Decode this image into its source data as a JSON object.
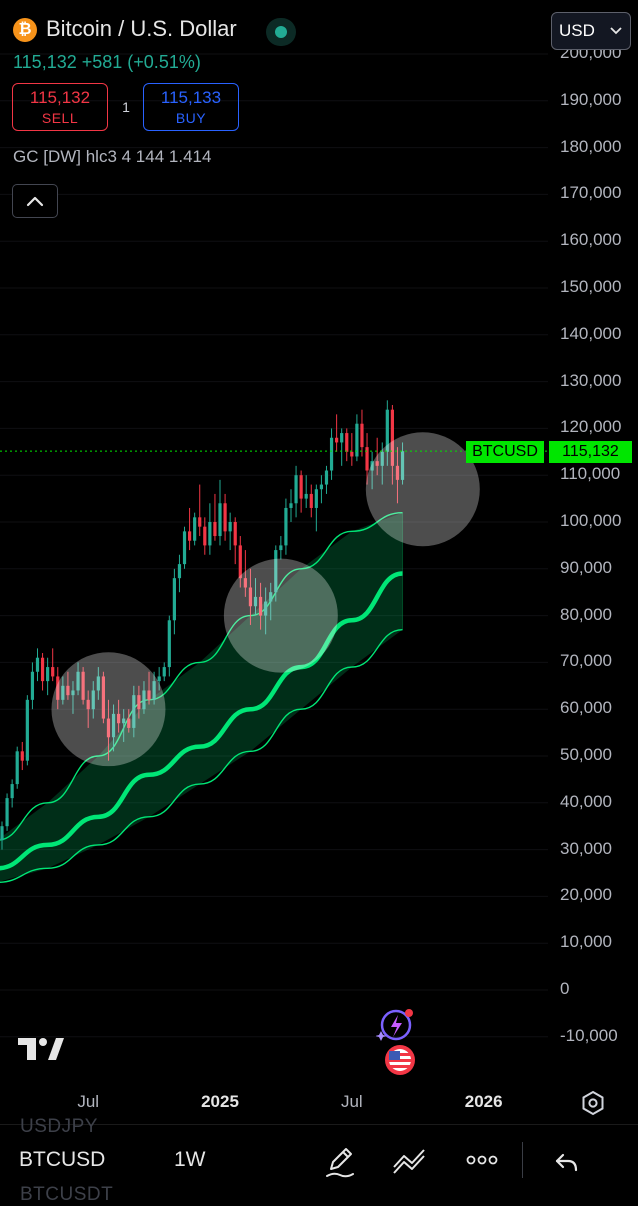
{
  "header": {
    "title": "Bitcoin / U.S. Dollar",
    "price": "115,132",
    "change": "+581 (+0.51%)",
    "sell_price": "115,132",
    "sell_label": "SELL",
    "spread": "1",
    "buy_price": "115,133",
    "buy_label": "BUY",
    "indicator": "GC [DW] hlc3 4 144 1.414",
    "currency": "USD"
  },
  "price_badge": {
    "symbol": "BTCUSD",
    "price": "115,132"
  },
  "colors": {
    "up": "#22ab94",
    "down": "#f23645",
    "band": "#00e676",
    "badge": "#00e600",
    "buy": "#2962ff"
  },
  "icons": [
    "bitcoin-logo",
    "live-dot",
    "chevron-down-icon",
    "chevron-up-icon",
    "tradingview-logo",
    "settings-icon",
    "ai-assistant-icon",
    "us-flag-icon",
    "pencil-icon",
    "trend-line-icon",
    "more-icon",
    "undo-icon"
  ],
  "bottom_bar": {
    "ghost_above": "USDJPY",
    "symbol": "BTCUSD",
    "interval": "1W",
    "ghost_below": "BTCUSDT"
  },
  "chart_data": {
    "type": "candlestick",
    "symbol": "BTCUSD",
    "interval": "1W",
    "y_ticks": [
      "200,000",
      "190,000",
      "180,000",
      "170,000",
      "160,000",
      "150,000",
      "140,000",
      "130,000",
      "120,000",
      "110,000",
      "100,000",
      "90,000",
      "80,000",
      "70,000",
      "60,000",
      "50,000",
      "40,000",
      "30,000",
      "20,000",
      "10,000",
      "0",
      "-10,000"
    ],
    "x_ticks": [
      {
        "label": "Jul",
        "bold": false
      },
      {
        "label": "2025",
        "bold": true
      },
      {
        "label": "Jul",
        "bold": false
      },
      {
        "label": "2026",
        "bold": true
      }
    ],
    "x_tick_weeks": [
      17,
      43,
      69,
      95
    ],
    "ylim": [
      -10000,
      200000
    ],
    "last_price": 115132,
    "candles": [
      [
        32000,
        36000,
        30000,
        35000
      ],
      [
        35000,
        42000,
        34000,
        41000
      ],
      [
        41000,
        45000,
        39000,
        44000
      ],
      [
        44000,
        52000,
        43000,
        51000
      ],
      [
        51000,
        53000,
        47000,
        49000
      ],
      [
        49000,
        63000,
        48000,
        62000
      ],
      [
        62000,
        70000,
        60000,
        68000
      ],
      [
        68000,
        73000,
        66000,
        71000
      ],
      [
        71000,
        72000,
        64000,
        66000
      ],
      [
        66000,
        71000,
        63000,
        69000
      ],
      [
        69000,
        73000,
        66000,
        67000
      ],
      [
        67000,
        69000,
        60000,
        62000
      ],
      [
        62000,
        67000,
        61000,
        65000
      ],
      [
        65000,
        68000,
        62000,
        63000
      ],
      [
        63000,
        66000,
        59000,
        64000
      ],
      [
        64000,
        70000,
        63000,
        68000
      ],
      [
        68000,
        69000,
        61000,
        62000
      ],
      [
        62000,
        64000,
        56000,
        60000
      ],
      [
        60000,
        66000,
        58000,
        64000
      ],
      [
        64000,
        69000,
        62000,
        67000
      ],
      [
        67000,
        68000,
        57000,
        58000
      ],
      [
        58000,
        62000,
        49000,
        54000
      ],
      [
        54000,
        61000,
        51000,
        59000
      ],
      [
        59000,
        62000,
        55000,
        57000
      ],
      [
        57000,
        60000,
        53000,
        58000
      ],
      [
        58000,
        60000,
        55000,
        56000
      ],
      [
        56000,
        65000,
        54000,
        63000
      ],
      [
        63000,
        65000,
        58000,
        60000
      ],
      [
        60000,
        66000,
        59000,
        64000
      ],
      [
        64000,
        68000,
        61000,
        62000
      ],
      [
        62000,
        68000,
        61000,
        66000
      ],
      [
        66000,
        69000,
        64000,
        67000
      ],
      [
        67000,
        70000,
        66000,
        69000
      ],
      [
        69000,
        80000,
        67000,
        79000
      ],
      [
        79000,
        90000,
        76000,
        88000
      ],
      [
        88000,
        93000,
        85000,
        91000
      ],
      [
        91000,
        99000,
        90000,
        98000
      ],
      [
        98000,
        103000,
        94000,
        96000
      ],
      [
        96000,
        102000,
        95000,
        101000
      ],
      [
        101000,
        108000,
        97000,
        99000
      ],
      [
        99000,
        101000,
        93000,
        95000
      ],
      [
        95000,
        104000,
        93000,
        100000
      ],
      [
        100000,
        106000,
        96000,
        97000
      ],
      [
        97000,
        109000,
        95000,
        104000
      ],
      [
        104000,
        106000,
        96000,
        98000
      ],
      [
        98000,
        102000,
        94000,
        100000
      ],
      [
        100000,
        101000,
        91000,
        95000
      ],
      [
        95000,
        97000,
        86000,
        88000
      ],
      [
        88000,
        94000,
        84000,
        86000
      ],
      [
        86000,
        90000,
        78000,
        82000
      ],
      [
        82000,
        88000,
        80000,
        84000
      ],
      [
        84000,
        87000,
        77000,
        80000
      ],
      [
        80000,
        86000,
        76000,
        83000
      ],
      [
        83000,
        87000,
        79000,
        85000
      ],
      [
        85000,
        95000,
        83000,
        94000
      ],
      [
        94000,
        97000,
        92000,
        95000
      ],
      [
        95000,
        105000,
        93000,
        103000
      ],
      [
        103000,
        107000,
        100000,
        104000
      ],
      [
        104000,
        112000,
        101000,
        110000
      ],
      [
        110000,
        111000,
        102000,
        105000
      ],
      [
        105000,
        110000,
        103000,
        106000
      ],
      [
        106000,
        108000,
        101000,
        103000
      ],
      [
        103000,
        108000,
        98000,
        107000
      ],
      [
        107000,
        110000,
        104000,
        108000
      ],
      [
        108000,
        112000,
        106000,
        111000
      ],
      [
        111000,
        120000,
        109000,
        118000
      ],
      [
        118000,
        123000,
        115000,
        117000
      ],
      [
        117000,
        120000,
        112000,
        119000
      ],
      [
        119000,
        120000,
        113000,
        115000
      ],
      [
        115000,
        119000,
        112000,
        114000
      ],
      [
        114000,
        123000,
        113000,
        121000
      ],
      [
        121000,
        124000,
        114000,
        116000
      ],
      [
        116000,
        119000,
        108000,
        111000
      ],
      [
        111000,
        115000,
        107000,
        113000
      ],
      [
        113000,
        118000,
        110000,
        112000
      ],
      [
        112000,
        117000,
        108000,
        115000
      ],
      [
        115000,
        126000,
        112000,
        124000
      ],
      [
        124000,
        125000,
        108000,
        112000
      ],
      [
        112000,
        116000,
        104000,
        109000
      ],
      [
        109000,
        117000,
        108000,
        115132
      ]
    ],
    "band_mid": [
      [
        -1,
        26000
      ],
      [
        9,
        31000
      ],
      [
        19,
        37000
      ],
      [
        29,
        46000
      ],
      [
        39,
        52000
      ],
      [
        49,
        60000
      ],
      [
        59,
        69000
      ],
      [
        69,
        79000
      ],
      [
        79,
        89000
      ]
    ],
    "band_upper": [
      [
        -1,
        32000
      ],
      [
        9,
        40000
      ],
      [
        19,
        50000
      ],
      [
        29,
        62000
      ],
      [
        39,
        70000
      ],
      [
        49,
        80000
      ],
      [
        59,
        90000
      ],
      [
        69,
        98000
      ],
      [
        79,
        102000
      ]
    ],
    "band_lower": [
      [
        -1,
        23000
      ],
      [
        9,
        26000
      ],
      [
        19,
        31000
      ],
      [
        29,
        37000
      ],
      [
        39,
        44000
      ],
      [
        49,
        51000
      ],
      [
        59,
        60000
      ],
      [
        69,
        69000
      ],
      [
        79,
        77000
      ]
    ],
    "highlight_circles": [
      {
        "week": 21,
        "price": 60000,
        "week_radius": 7.4
      },
      {
        "week": 55,
        "price": 80000,
        "week_radius": 7.4
      },
      {
        "week": 83,
        "price": 107000,
        "week_radius": 7.4
      }
    ]
  }
}
